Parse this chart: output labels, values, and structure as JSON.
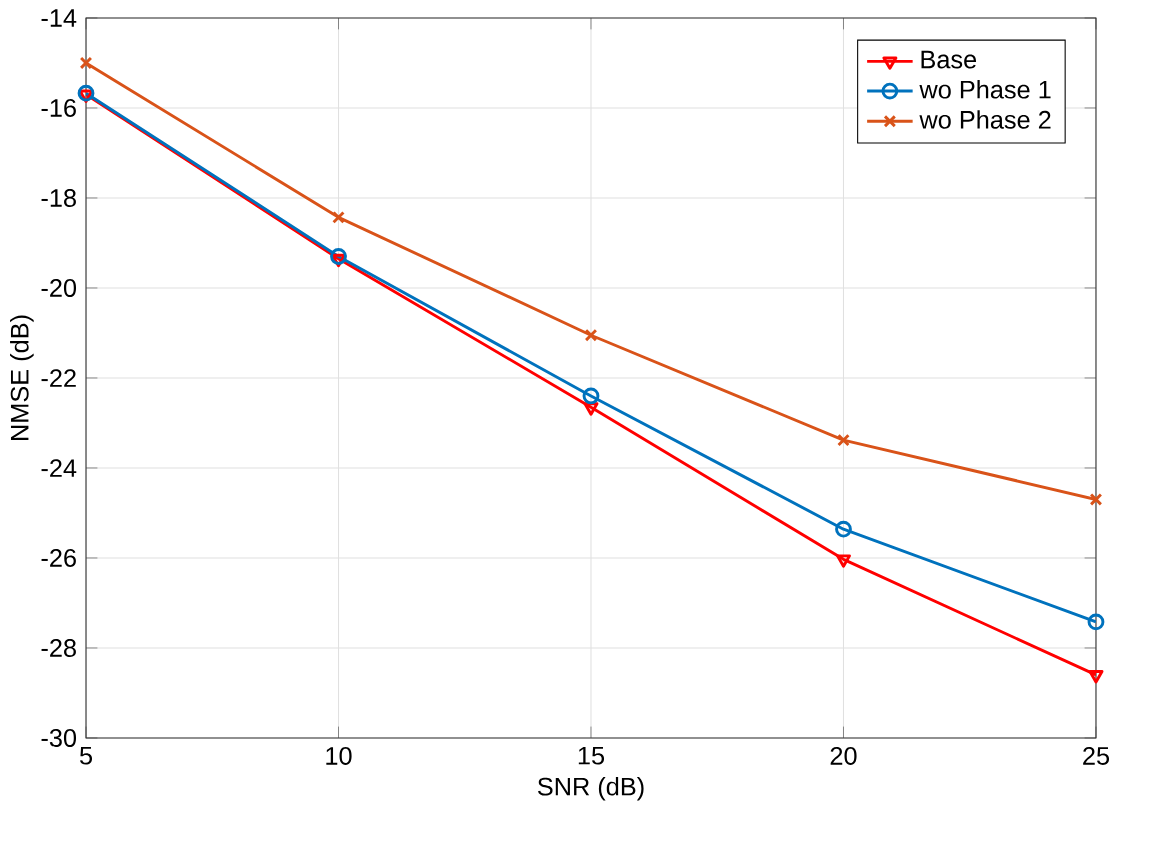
{
  "chart_data": {
    "type": "line",
    "xlabel": "SNR (dB)",
    "ylabel": "NMSE (dB)",
    "x": [
      5,
      10,
      15,
      20,
      25
    ],
    "xlim": [
      5,
      25
    ],
    "xticks": [
      5,
      10,
      15,
      20,
      25
    ],
    "ylim": [
      -30,
      -14
    ],
    "yticks": [
      -30,
      -28,
      -26,
      -24,
      -22,
      -20,
      -18,
      -16,
      -14
    ],
    "grid": true,
    "legend": "top right",
    "line_style": "solid",
    "series": [
      {
        "name": "Base",
        "color": "#ff0000",
        "marker": "triangle",
        "values": [
          -15.7,
          -19.35,
          -22.65,
          -26.03,
          -28.6
        ]
      },
      {
        "name": "wo Phase 1",
        "color": "#0072bd",
        "marker": "circle",
        "values": [
          -15.67,
          -19.3,
          -22.4,
          -25.36,
          -27.42
        ]
      },
      {
        "name": "wo Phase 2",
        "color": "#d95319",
        "marker": "cross",
        "values": [
          -15.0,
          -18.43,
          -21.05,
          -23.38,
          -24.7
        ]
      }
    ]
  }
}
